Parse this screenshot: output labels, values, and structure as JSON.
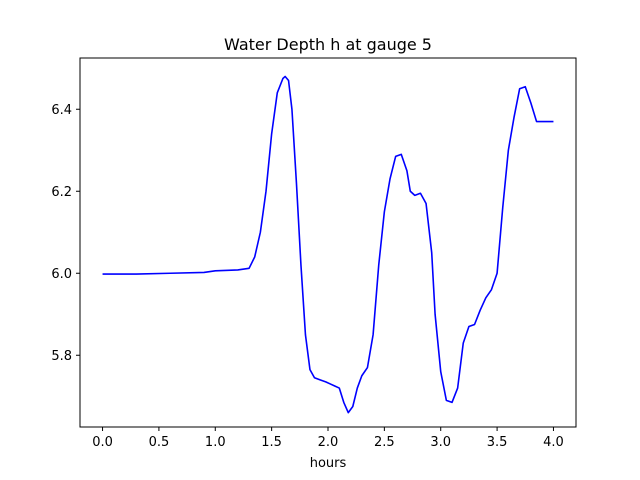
{
  "chart_data": {
    "type": "line",
    "title": "Water Depth h at gauge 5",
    "xlabel": "hours",
    "ylabel": "",
    "xlim": [
      -0.2,
      4.2
    ],
    "ylim": [
      5.625,
      6.525
    ],
    "xticks": [
      0.0,
      0.5,
      1.0,
      1.5,
      2.0,
      2.5,
      3.0,
      3.5,
      4.0
    ],
    "xtick_labels": [
      "0.0",
      "0.5",
      "1.0",
      "1.5",
      "2.0",
      "2.5",
      "3.0",
      "3.5",
      "4.0"
    ],
    "yticks": [
      5.8,
      6.0,
      6.2,
      6.4
    ],
    "ytick_labels": [
      "5.8",
      "6.0",
      "6.2",
      "6.4"
    ],
    "grid": false,
    "series": [
      {
        "color": "#0000ff",
        "x": [
          0.0,
          0.3,
          0.6,
          0.9,
          1.0,
          1.2,
          1.3,
          1.35,
          1.4,
          1.45,
          1.5,
          1.55,
          1.6,
          1.62,
          1.65,
          1.68,
          1.72,
          1.76,
          1.8,
          1.84,
          1.88,
          1.93,
          1.98,
          2.02,
          2.06,
          2.1,
          2.14,
          2.18,
          2.22,
          2.26,
          2.3,
          2.35,
          2.4,
          2.45,
          2.5,
          2.55,
          2.6,
          2.65,
          2.7,
          2.73,
          2.77,
          2.82,
          2.87,
          2.92,
          2.95,
          3.0,
          3.05,
          3.1,
          3.15,
          3.2,
          3.25,
          3.3,
          3.35,
          3.4,
          3.45,
          3.5,
          3.55,
          3.6,
          3.65,
          3.7,
          3.75,
          3.8,
          3.85,
          3.9,
          3.94,
          3.97,
          4.0
        ],
        "values": [
          5.998,
          5.998,
          6.0,
          6.002,
          6.006,
          6.008,
          6.012,
          6.04,
          6.1,
          6.2,
          6.34,
          6.44,
          6.475,
          6.48,
          6.47,
          6.4,
          6.22,
          6.02,
          5.85,
          5.765,
          5.745,
          5.74,
          5.735,
          5.73,
          5.725,
          5.72,
          5.685,
          5.66,
          5.675,
          5.72,
          5.75,
          5.77,
          5.85,
          6.02,
          6.15,
          6.23,
          6.285,
          6.29,
          6.25,
          6.2,
          6.19,
          6.195,
          6.17,
          6.05,
          5.9,
          5.76,
          5.69,
          5.685,
          5.72,
          5.83,
          5.87,
          5.875,
          5.91,
          5.94,
          5.96,
          6.0,
          6.16,
          6.3,
          6.38,
          6.45,
          6.455,
          6.415,
          6.37,
          6.37,
          6.37,
          6.37,
          6.37
        ]
      }
    ]
  }
}
